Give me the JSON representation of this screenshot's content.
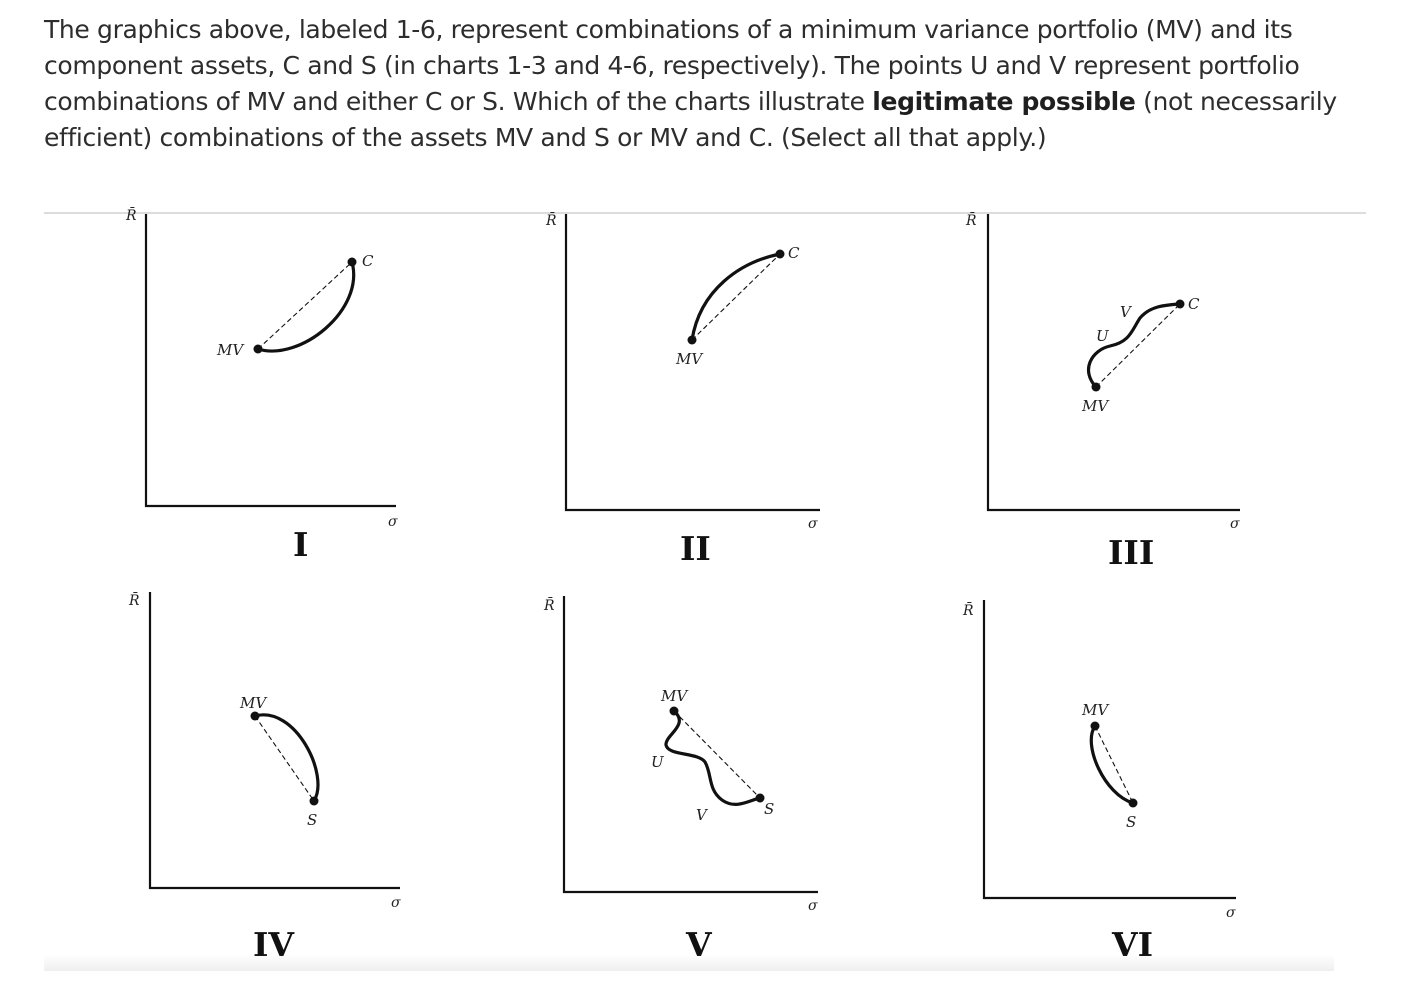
{
  "question": {
    "before": "The graphics above, labeled 1-6, represent combinations of a minimum variance portfolio (MV) and its component assets, C and S (in charts 1-3 and 4-6, respectively). The points U and V represent portfolio combinations of MV and either C or S. Which of the charts illustrate ",
    "bold": "legitimate possible",
    "after": " (not necessarily efficient) combinations of the assets MV and S or MV and C. (Select all that apply.)"
  },
  "axes": {
    "y_label": "R̄",
    "x_label": "σ"
  },
  "charts": [
    {
      "numeral": "I",
      "points": {
        "mv": "MV",
        "c": "C"
      }
    },
    {
      "numeral": "II",
      "points": {
        "mv": "MV",
        "c": "C"
      }
    },
    {
      "numeral": "III",
      "points": {
        "mv": "MV",
        "u": "U",
        "v": "V",
        "c": "C"
      }
    },
    {
      "numeral": "IV",
      "points": {
        "mv": "MV",
        "s": "S"
      }
    },
    {
      "numeral": "V",
      "points": {
        "mv": "MV",
        "u": "U",
        "v": "V",
        "s": "S"
      }
    },
    {
      "numeral": "VI",
      "points": {
        "mv": "MV",
        "s": "S"
      }
    }
  ],
  "colors": {
    "ink": "#111111",
    "text": "#2d2d2d",
    "rule": "#dcdcdc"
  }
}
